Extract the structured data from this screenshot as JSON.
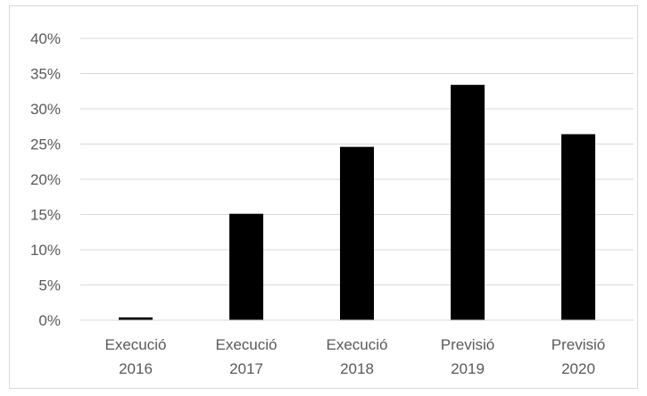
{
  "chart_data": {
    "type": "bar",
    "categories": [
      [
        "Execució",
        "2016"
      ],
      [
        "Execució",
        "2017"
      ],
      [
        "Execució",
        "2018"
      ],
      [
        "Previsió",
        "2019"
      ],
      [
        "Previsió",
        "2020"
      ]
    ],
    "values": [
      0.4,
      15.1,
      24.6,
      33.4,
      26.4
    ],
    "ylim": [
      0,
      40
    ],
    "yticks": [
      0,
      5,
      10,
      15,
      20,
      25,
      30,
      35,
      40
    ],
    "ytick_labels": [
      "0%",
      "5%",
      "10%",
      "15%",
      "20%",
      "25%",
      "30%",
      "35%",
      "40%"
    ],
    "grid": true,
    "legend": "none",
    "colors": {
      "bar": "#000000",
      "grid": "#d9d9d9",
      "axis": "#d9d9d9",
      "text": "#595959"
    }
  }
}
